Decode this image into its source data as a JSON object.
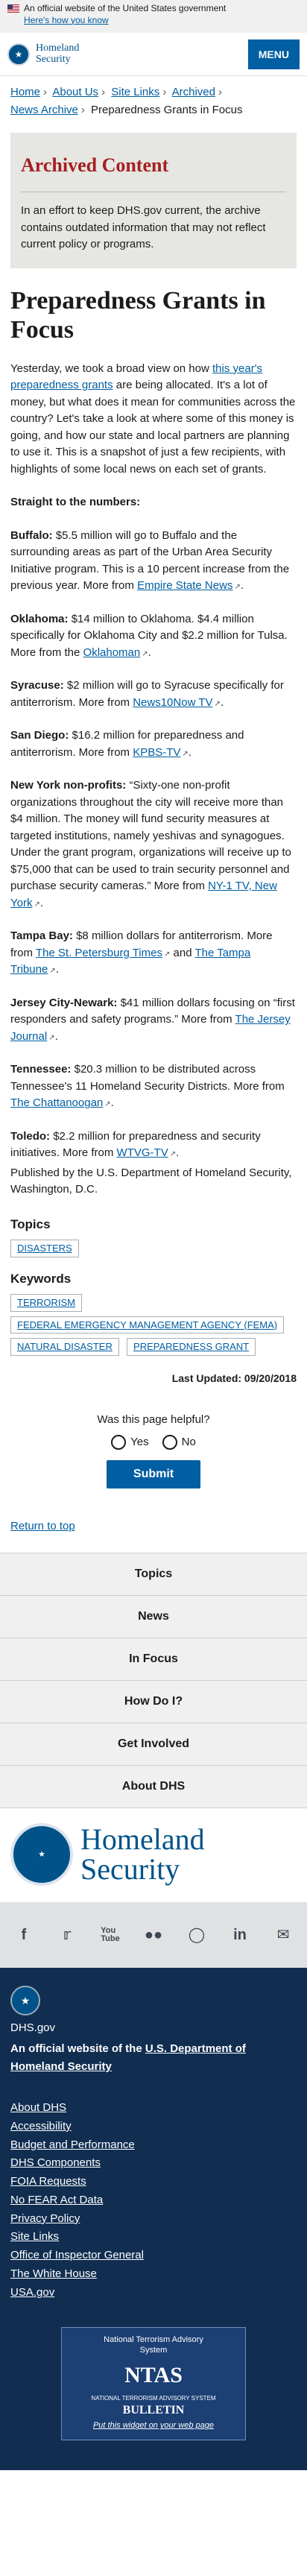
{
  "gov_banner": {
    "text": "An official website of the United States government",
    "how": "Here's how you know"
  },
  "header": {
    "logo_line1": "Homeland",
    "logo_line2": "Security",
    "menu": "MENU"
  },
  "breadcrumb": [
    "Home",
    "About Us",
    "Site Links",
    "Archived",
    "News Archive",
    "Preparedness Grants in Focus"
  ],
  "archive": {
    "title": "Archived Content",
    "text": "In an effort to keep DHS.gov current, the archive contains outdated information that may not reflect current policy or programs."
  },
  "article": {
    "title": "Preparedness Grants in Focus",
    "intro_before": "Yesterday, we took a broad view on how ",
    "intro_link": "this year's preparedness grants",
    "intro_after": " are being allocated. It's a lot of money, but what does it mean for communities across the country? Let's take a look at where some of this money is going, and how our state and local partners are planning to use it. This is a snapshot of just a few recipients, with highlights of some local news on each set of grants.",
    "subhead": "Straight to the numbers:",
    "items": [
      {
        "label": "Buffalo:",
        "text": " $5.5 million will go to Buffalo and the surrounding areas as part of the Urban Area Security Initiative program. This is a 10 percent increase from the previous year. More from ",
        "links": [
          "Empire State News"
        ],
        "tail": "."
      },
      {
        "label": "Oklahoma:",
        "text": " $14 million to Oklahoma. $4.4 million specifically for Oklahoma City and $2.2 million for Tulsa. More from the ",
        "links": [
          "Oklahoman"
        ],
        "tail": "."
      },
      {
        "label": "Syracuse:",
        "text": " $2 million will go to Syracuse specifically for antiterrorism. More from ",
        "links": [
          "News10Now TV"
        ],
        "tail": "."
      },
      {
        "label": "San Diego:",
        "text": " $16.2 million for preparedness and antiterrorism. More from ",
        "links": [
          "KPBS-TV"
        ],
        "tail": "."
      },
      {
        "label": "New York non-profits:",
        "text": " “Sixty-one non-profit organizations throughout the city will receive more than $4 million. The money will fund security measures at targeted institutions, namely yeshivas and synagogues. Under the grant program, organizations will receive up to $75,000 that can be used to train security personnel and purchase security cameras.” More from ",
        "links": [
          "NY-1 TV, New York"
        ],
        "tail": "."
      },
      {
        "label": "Tampa Bay:",
        "text": " $8 million dollars for antiterrorism. More from ",
        "links": [
          "The St. Petersburg Times",
          "The Tampa Tribune"
        ],
        "joiner": " and ",
        "tail": "."
      },
      {
        "label": "Jersey City-Newark:",
        "text": " $41 million dollars focusing on “first responders and safety programs.” More from ",
        "links": [
          "The Jersey Journal"
        ],
        "tail": "."
      },
      {
        "label": "Tennessee:",
        "text": " $20.3 million to be distributed across Tennessee's 11 Homeland Security Districts. More from ",
        "links": [
          "The Chattanoogan"
        ],
        "tail": "."
      },
      {
        "label": "Toledo:",
        "text": " $2.2 million for preparedness and security initiatives. More from ",
        "links": [
          "WTVG-TV"
        ],
        "tail": "."
      }
    ],
    "published": "Published by the U.S. Department of Homeland Security, Washington, D.C."
  },
  "topics": {
    "heading": "Topics",
    "tags": [
      "DISASTERS"
    ]
  },
  "keywords": {
    "heading": "Keywords",
    "tags": [
      "TERRORISM",
      "FEDERAL EMERGENCY MANAGEMENT AGENCY (FEMA)",
      "NATURAL DISASTER",
      "PREPAREDNESS GRANT"
    ]
  },
  "last_updated": "Last Updated: 09/20/2018",
  "feedback": {
    "question": "Was this page helpful?",
    "yes": "Yes",
    "no": "No",
    "submit": "Submit"
  },
  "return_top": "Return to top",
  "footer_nav": [
    "Topics",
    "News",
    "In Focus",
    "How Do I?",
    "Get Involved",
    "About DHS"
  ],
  "footer_logo": {
    "line1": "Homeland",
    "line2": "Security",
    "seal_text": "U.S. DEPARTMENT OF HOMELAND SECURITY"
  },
  "social": [
    "f",
    "t",
    "You\nTube",
    "flickr",
    "ig",
    "in",
    "email"
  ],
  "dark_footer": {
    "site": "DHS.gov",
    "official_prefix": "An official website of the ",
    "official_link": "U.S. Department of Homeland Security",
    "links": [
      "About DHS",
      "Accessibility",
      "Budget and Performance",
      "DHS Components",
      "FOIA Requests",
      "No FEAR Act Data",
      "Privacy Policy",
      "Site Links",
      "Office of Inspector General",
      "The White House",
      "USA.gov"
    ]
  },
  "ntas": {
    "line1": "National Terrorism Advisory",
    "line2": "System",
    "big": "NTAS",
    "sub": "NATIONAL TERRORISM ADVISORY SYSTEM",
    "bulletin": "BULLETIN",
    "put": "Put this widget on your web page"
  }
}
